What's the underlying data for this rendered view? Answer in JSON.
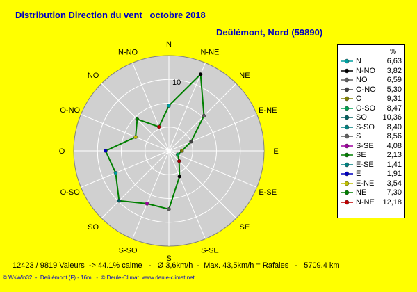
{
  "header": {
    "title": "Distribution Direction du vent   octobre 2018",
    "location": "Deûlémont, Nord (59890)"
  },
  "chart_data": {
    "type": "radar",
    "directions": [
      "N",
      "N-NE",
      "NE",
      "E-NE",
      "E",
      "E-SE",
      "SE",
      "S-SE",
      "S",
      "S-SO",
      "SO",
      "O-SO",
      "O",
      "O-NO",
      "NO",
      "N-NO"
    ],
    "values": [
      6.63,
      12.18,
      7.3,
      3.54,
      1.91,
      1.41,
      2.13,
      4.08,
      8.56,
      8.4,
      10.36,
      8.47,
      9.31,
      5.3,
      6.59,
      3.82
    ],
    "point_colors": [
      "#00a0a0",
      "#000000",
      "#606060",
      "#404040",
      "#808000",
      "#00a050",
      "#a00000",
      "#000000",
      "#606060",
      "#a000a0",
      "#006060",
      "#00a0a0",
      "#0000c0",
      "#c0c000",
      "#008000",
      "#c00000"
    ],
    "r_max": 14,
    "r_tick_label": "10",
    "r_tick_value": 10,
    "line_color": "#008000",
    "legend_header": "%",
    "legend": [
      {
        "label": "N",
        "value": "6,63"
      },
      {
        "label": "N-NO",
        "value": "3,82"
      },
      {
        "label": "NO",
        "value": "6,59"
      },
      {
        "label": "O-NO",
        "value": "5,30"
      },
      {
        "label": "O",
        "value": "9,31"
      },
      {
        "label": "O-SO",
        "value": "8,47"
      },
      {
        "label": "SO",
        "value": "10,36"
      },
      {
        "label": "S-SO",
        "value": "8,40"
      },
      {
        "label": "S",
        "value": "8,56"
      },
      {
        "label": "S-SE",
        "value": "4,08"
      },
      {
        "label": "SE",
        "value": "2,13"
      },
      {
        "label": "E-SE",
        "value": "1,41"
      },
      {
        "label": "E",
        "value": "1,91"
      },
      {
        "label": "E-NE",
        "value": "3,54"
      },
      {
        "label": "NE",
        "value": "7,30"
      },
      {
        "label": "N-NE",
        "value": "12,18"
      }
    ],
    "legend_colors": [
      "#00a0a0",
      "#000000",
      "#606060",
      "#404040",
      "#808000",
      "#00a050",
      "#006060",
      "#008080",
      "#606060",
      "#a000a0",
      "#008000",
      "#008080",
      "#0000c0",
      "#c0c000",
      "#008000",
      "#c00000"
    ]
  },
  "stats": "12423 / 9819 Valeurs  -> 44.1% calme   -   Ø 3,6km/h  -  Max. 43,5km/h = Rafales   -   5709.4 km",
  "footer": "© WsWin32  -  Deûlémont (F) - 16m   -  © Deule-Climat  www.deule-climat.net"
}
